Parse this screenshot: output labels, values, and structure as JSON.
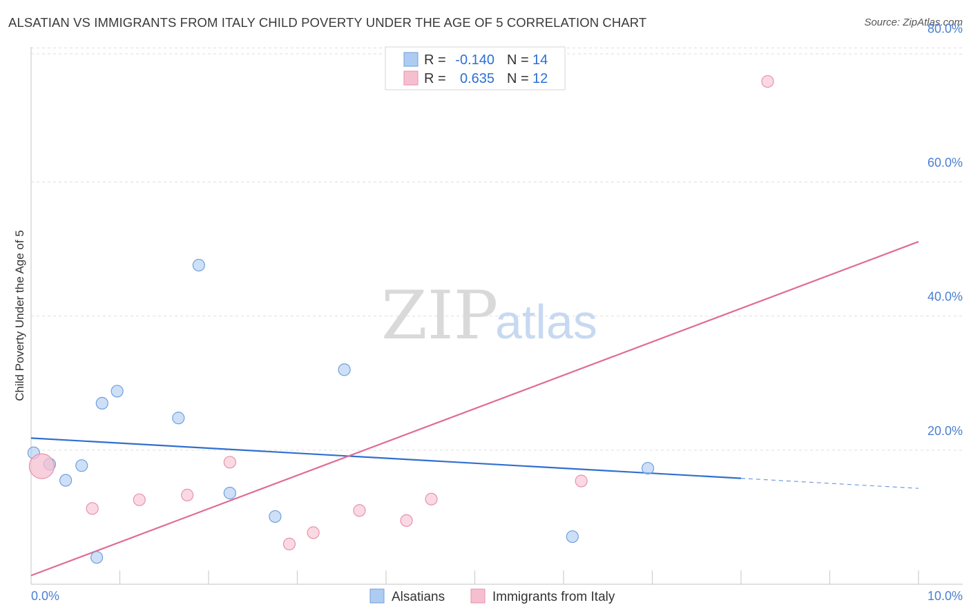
{
  "title": "ALSATIAN VS IMMIGRANTS FROM ITALY CHILD POVERTY UNDER THE AGE OF 5 CORRELATION CHART",
  "source": "Source: ZipAtlas.com",
  "watermark": {
    "zip": "ZIP",
    "atlas": "atlas"
  },
  "legend": {
    "rows": [
      {
        "r_label": "R = ",
        "r_value": "-0.140",
        "n_label": "N = ",
        "n_value": "14",
        "color": "#aecbf2"
      },
      {
        "r_label": "R = ",
        "r_value": "0.635",
        "n_label": "N = ",
        "n_value": "12",
        "color": "#f6bfd0"
      }
    ]
  },
  "bottom_legend": [
    {
      "label": "Alsatians",
      "color": "#aecbf2"
    },
    {
      "label": "Immigrants from Italy",
      "color": "#f6bfd0"
    }
  ],
  "colors": {
    "blue_fill": "#aecbf2",
    "blue_stroke": "#6f9fdc",
    "blue_line": "#2f6fcf",
    "pink_fill": "#f6bfd0",
    "pink_stroke": "#e592ad",
    "pink_line": "#e06b93",
    "grid": "#dddddd",
    "tick": "#4a7fd0"
  },
  "chart_data": {
    "type": "scatter",
    "title": "ALSATIAN VS IMMIGRANTS FROM ITALY CHILD POVERTY UNDER THE AGE OF 5 CORRELATION CHART",
    "xlabel": "",
    "ylabel": "Child Poverty Under the Age of 5",
    "xlim": [
      0,
      10
    ],
    "ylim": [
      0,
      82
    ],
    "x_tick_labels": {
      "min": "0.0%",
      "max": "10.0%"
    },
    "y_ticks": [
      {
        "value": 20,
        "label": "20.0%"
      },
      {
        "value": 40,
        "label": "40.0%"
      },
      {
        "value": 60,
        "label": "60.0%"
      },
      {
        "value": 80,
        "label": "80.0%"
      }
    ],
    "series": [
      {
        "name": "Alsatians",
        "r": -0.14,
        "n": 14,
        "points": [
          {
            "x": 0.03,
            "y": 19.6
          },
          {
            "x": 0.21,
            "y": 17.9
          },
          {
            "x": 0.39,
            "y": 15.5
          },
          {
            "x": 0.57,
            "y": 17.7
          },
          {
            "x": 0.74,
            "y": 4.0
          },
          {
            "x": 0.8,
            "y": 27.0
          },
          {
            "x": 0.97,
            "y": 28.8
          },
          {
            "x": 1.66,
            "y": 24.8
          },
          {
            "x": 1.89,
            "y": 47.6
          },
          {
            "x": 2.24,
            "y": 13.6
          },
          {
            "x": 2.75,
            "y": 10.1
          },
          {
            "x": 3.53,
            "y": 32.0
          },
          {
            "x": 6.1,
            "y": 7.1
          },
          {
            "x": 6.95,
            "y": 17.3
          }
        ],
        "trend": {
          "x0": 0.0,
          "y0": 21.8,
          "x1": 8.0,
          "y1": 15.8,
          "dash_to_x": 10.0,
          "dash_to_y": 14.3
        }
      },
      {
        "name": "Immigrants from Italy",
        "r": 0.635,
        "n": 12,
        "points": [
          {
            "x": 0.12,
            "y": 17.6,
            "large": true
          },
          {
            "x": 0.69,
            "y": 11.3
          },
          {
            "x": 1.22,
            "y": 12.6
          },
          {
            "x": 1.76,
            "y": 13.3
          },
          {
            "x": 2.24,
            "y": 18.2
          },
          {
            "x": 2.91,
            "y": 6.0
          },
          {
            "x": 3.18,
            "y": 7.7
          },
          {
            "x": 3.7,
            "y": 11.0
          },
          {
            "x": 4.23,
            "y": 9.5
          },
          {
            "x": 4.51,
            "y": 12.7
          },
          {
            "x": 6.2,
            "y": 15.4
          },
          {
            "x": 8.3,
            "y": 75.0
          }
        ],
        "trend": {
          "x0": 0.0,
          "y0": 1.3,
          "x1": 10.0,
          "y1": 51.1
        }
      }
    ]
  }
}
